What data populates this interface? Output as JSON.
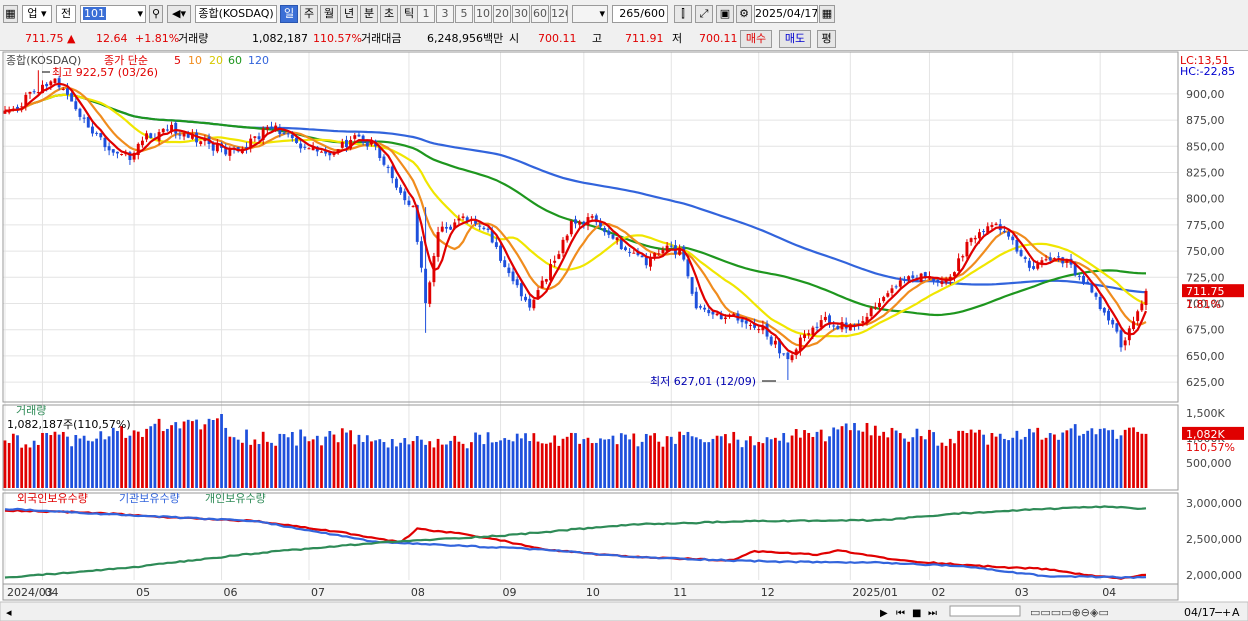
{
  "toolbar": {
    "market": "업",
    "prev": "전",
    "code": "101",
    "index_name": "종합(KOSDAQ)",
    "periods": [
      "일",
      "주",
      "월",
      "년",
      "분",
      "초",
      "틱"
    ],
    "active_period": "일",
    "intervals": [
      "1",
      "3",
      "5",
      "10",
      "20",
      "30",
      "60",
      "120"
    ],
    "count": "265",
    "total": "/600",
    "date": "2025/04/17"
  },
  "info": {
    "price": "711.75",
    "change": "12.64",
    "change_pct": "+1.81%",
    "volume_label": "거래량",
    "volume": "1,082,187",
    "volume_pct": "110.57%",
    "amount_label": "거래대금",
    "amount": "6,248,956백만",
    "open_label": "시",
    "open": "700.11",
    "high_label": "고",
    "high": "711.91",
    "low_label": "저",
    "low": "700.11",
    "buy_label": "매수",
    "sell_label": "매도",
    "avg_label": "평"
  },
  "colors": {
    "up": "#e00000",
    "down": "#1e50dc",
    "ma5": "#e00000",
    "ma10": "#f08c1e",
    "ma20": "#f0e600",
    "ma60": "#1e961e",
    "ma120": "#3264dc",
    "foreign": "#e00000",
    "institution": "#3264dc",
    "individual": "#2e8b57"
  },
  "chart_data": [
    {
      "type": "candlestick",
      "title": "종합(KOSDAQ)",
      "legend": {
        "label": "종가 단순",
        "periods": [
          "5",
          "10",
          "20",
          "60",
          "120"
        ]
      },
      "ylim": [
        606,
        940
      ],
      "yticks": [
        900,
        875,
        850,
        825,
        800,
        775,
        750,
        725,
        700,
        675,
        650,
        625
      ],
      "ytick_labels": [
        "900,00",
        "875,00",
        "850,00",
        "825,00",
        "800,00",
        "775,00",
        "750,00",
        "725,00",
        "700,00",
        "675,00",
        "650,00",
        "625,00"
      ],
      "lc_label": "LC:13,51",
      "hc_label": "HC:-22,85",
      "last_label": "711.75",
      "last_pct_label": "1.81%",
      "high_annotation": "최고 922,57 (03/26)",
      "low_annotation": "최저 627,01 (12/09)",
      "close_anchors": [
        [
          0,
          880
        ],
        [
          8,
          905
        ],
        [
          12,
          915
        ],
        [
          16,
          895
        ],
        [
          20,
          870
        ],
        [
          26,
          845
        ],
        [
          30,
          840
        ],
        [
          34,
          858
        ],
        [
          40,
          868
        ],
        [
          44,
          860
        ],
        [
          50,
          850
        ],
        [
          54,
          844
        ],
        [
          60,
          855
        ],
        [
          64,
          870
        ],
        [
          68,
          860
        ],
        [
          72,
          850
        ],
        [
          78,
          842
        ],
        [
          84,
          858
        ],
        [
          88,
          852
        ],
        [
          94,
          815
        ],
        [
          98,
          790
        ],
        [
          101,
          700
        ],
        [
          104,
          770
        ],
        [
          110,
          780
        ],
        [
          116,
          770
        ],
        [
          122,
          720
        ],
        [
          126,
          700
        ],
        [
          132,
          740
        ],
        [
          136,
          775
        ],
        [
          142,
          780
        ],
        [
          148,
          755
        ],
        [
          154,
          740
        ],
        [
          158,
          755
        ],
        [
          162,
          750
        ],
        [
          166,
          700
        ],
        [
          170,
          690
        ],
        [
          176,
          685
        ],
        [
          182,
          675
        ],
        [
          188,
          645
        ],
        [
          191,
          665
        ],
        [
          196,
          685
        ],
        [
          200,
          680
        ],
        [
          204,
          675
        ],
        [
          208,
          695
        ],
        [
          214,
          720
        ],
        [
          220,
          725
        ],
        [
          224,
          722
        ],
        [
          228,
          730
        ],
        [
          232,
          765
        ],
        [
          238,
          775
        ],
        [
          242,
          760
        ],
        [
          246,
          735
        ],
        [
          252,
          745
        ],
        [
          256,
          735
        ],
        [
          262,
          705
        ],
        [
          266,
          680
        ],
        [
          268,
          662
        ],
        [
          272,
          690
        ],
        [
          274,
          712
        ]
      ],
      "ma_periods": [
        5,
        10,
        20,
        60,
        120
      ],
      "x_labels": [
        "2024/03",
        "04",
        "05",
        "06",
        "07",
        "08",
        "09",
        "10",
        "11",
        "12",
        "2025/01",
        "02",
        "03",
        "04"
      ],
      "x_label_days": [
        0,
        9,
        31,
        52,
        73,
        97,
        119,
        139,
        160,
        181,
        203,
        222,
        242,
        263
      ]
    },
    {
      "type": "bar",
      "title": "거래량",
      "subtitle": "1,082,187주(110,57%)",
      "ylim": [
        0,
        1600000
      ],
      "yticks": [
        1500000,
        1000000,
        500000
      ],
      "ytick_labels": [
        "1,500K",
        "1,000K",
        "500,000"
      ],
      "last_label": "1,082K",
      "last_pct_label": "110,57%",
      "volume_anchors": [
        [
          0,
          950000
        ],
        [
          20,
          1000000
        ],
        [
          48,
          1350000
        ],
        [
          60,
          1000000
        ],
        [
          80,
          1050000
        ],
        [
          90,
          950000
        ],
        [
          100,
          900000
        ],
        [
          110,
          960000
        ],
        [
          130,
          1000000
        ],
        [
          150,
          950000
        ],
        [
          165,
          1000000
        ],
        [
          180,
          980000
        ],
        [
          190,
          1050000
        ],
        [
          205,
          1150000
        ],
        [
          225,
          1000000
        ],
        [
          245,
          1050000
        ],
        [
          262,
          1150000
        ],
        [
          274,
          1082187
        ]
      ]
    },
    {
      "type": "line",
      "series": [
        {
          "name": "외국인보유수량",
          "anchors": [
            [
              0,
              2900000
            ],
            [
              20,
              2870000
            ],
            [
              40,
              2800000
            ],
            [
              60,
              2750000
            ],
            [
              80,
              2600000
            ],
            [
              95,
              2450000
            ],
            [
              99,
              2640000
            ],
            [
              110,
              2570000
            ],
            [
              120,
              2470000
            ],
            [
              130,
              2350000
            ],
            [
              150,
              2250000
            ],
            [
              175,
              2200000
            ],
            [
              180,
              2330000
            ],
            [
              195,
              2280000
            ],
            [
              200,
              2340000
            ],
            [
              215,
              2200000
            ],
            [
              235,
              2120000
            ],
            [
              250,
              2080000
            ],
            [
              262,
              1980000
            ],
            [
              268,
              1950000
            ],
            [
              274,
              2000000
            ]
          ]
        },
        {
          "name": "기관보유수량",
          "anchors": [
            [
              0,
              2920000
            ],
            [
              30,
              2830000
            ],
            [
              60,
              2750000
            ],
            [
              90,
              2450000
            ],
            [
              100,
              2430000
            ],
            [
              130,
              2350000
            ],
            [
              150,
              2250000
            ],
            [
              175,
              2200000
            ],
            [
              190,
              2180000
            ],
            [
              210,
              2170000
            ],
            [
              230,
              2120000
            ],
            [
              250,
              1980000
            ],
            [
              274,
              1960000
            ]
          ]
        },
        {
          "name": "개인보유수량",
          "anchors": [
            [
              0,
              1960000
            ],
            [
              30,
              2100000
            ],
            [
              60,
              2300000
            ],
            [
              90,
              2450000
            ],
            [
              120,
              2550000
            ],
            [
              150,
              2700000
            ],
            [
              180,
              2750000
            ],
            [
              210,
              2760000
            ],
            [
              230,
              2860000
            ],
            [
              250,
              2920000
            ],
            [
              265,
              2950000
            ],
            [
              274,
              2920000
            ]
          ]
        }
      ],
      "ylim": [
        1900000,
        3100000
      ],
      "yticks": [
        3000000,
        2500000,
        2000000
      ],
      "ytick_labels": [
        "3,000,000",
        "2,500,000",
        "2,000,000"
      ]
    }
  ],
  "status": {
    "date_label": "04/17"
  }
}
